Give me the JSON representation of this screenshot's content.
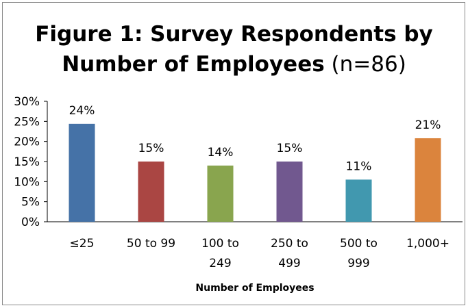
{
  "chart_data": {
    "type": "bar",
    "title_line1": "Figure 1: Survey Respondents by",
    "title_line2": "Number of Employees",
    "title_suffix": "(n=86)",
    "xlabel": "Number of Employees",
    "ylabel": "",
    "ylim": [
      0,
      30
    ],
    "y_ticks": [
      "0%",
      "5%",
      "10%",
      "15%",
      "20%",
      "25%",
      "30%"
    ],
    "y_tick_values": [
      0,
      5,
      10,
      15,
      20,
      25,
      30
    ],
    "grid": false,
    "legend": "none",
    "categories": [
      [
        "≤25"
      ],
      [
        "50 to 99"
      ],
      [
        "100 to",
        "249"
      ],
      [
        "250 to",
        "499"
      ],
      [
        "500 to",
        "999"
      ],
      [
        "1,000+"
      ]
    ],
    "values": [
      24.4,
      15,
      14,
      15,
      10.5,
      20.8
    ],
    "data_labels": [
      "24%",
      "15%",
      "14%",
      "15%",
      "11%",
      "21%"
    ],
    "colors": [
      "#4572A7",
      "#AA4643",
      "#89A54E",
      "#71588F",
      "#4198AF",
      "#DB843D"
    ]
  }
}
